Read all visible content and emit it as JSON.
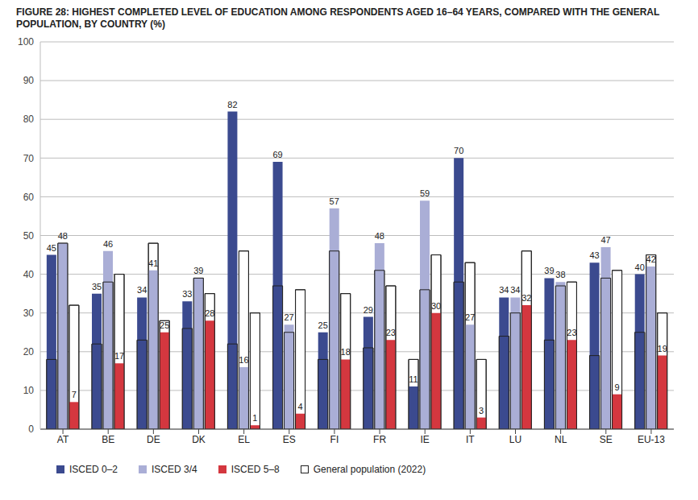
{
  "chart_data": {
    "type": "bar",
    "title": "FIGURE 28: HIGHEST COMPLETED LEVEL OF EDUCATION AMONG RESPONDENTS AGED 16–64 YEARS, COMPARED WITH THE GENERAL POPULATION, BY COUNTRY (%)",
    "categories": [
      "AT",
      "BE",
      "DE",
      "DK",
      "EL",
      "ES",
      "FI",
      "FR",
      "IE",
      "IT",
      "LU",
      "NL",
      "SE",
      "EU-13"
    ],
    "ylim": [
      0,
      100
    ],
    "yticks": [
      0,
      10,
      20,
      30,
      40,
      50,
      60,
      70,
      80,
      90,
      100
    ],
    "grid": true,
    "series": [
      {
        "name": "ISCED 0–2",
        "color": "#3b4a8f",
        "data_labels": true,
        "values": [
          45,
          35,
          34,
          33,
          82,
          69,
          25,
          29,
          11,
          70,
          34,
          39,
          43,
          40
        ]
      },
      {
        "name": "ISCED 3/4",
        "color": "#aaaed6",
        "data_labels": true,
        "values": [
          48,
          46,
          41,
          39,
          16,
          27,
          57,
          48,
          59,
          27,
          34,
          38,
          47,
          42
        ]
      },
      {
        "name": "ISCED 5–8",
        "color": "#d4373f",
        "data_labels": true,
        "values": [
          7,
          17,
          25,
          28,
          1,
          4,
          18,
          23,
          30,
          3,
          32,
          23,
          9,
          19
        ]
      },
      {
        "name": "General population (2022)",
        "color": "#ffffff",
        "type": "outline",
        "data_labels": false,
        "values": [
          [
            18,
            48,
            32
          ],
          [
            22,
            38,
            40
          ],
          [
            23,
            48,
            28
          ],
          [
            26,
            39,
            35
          ],
          [
            22,
            46,
            30
          ],
          [
            37,
            25,
            36
          ],
          [
            18,
            46,
            35
          ],
          [
            21,
            41,
            37
          ],
          [
            18,
            36,
            45
          ],
          [
            38,
            43,
            18
          ],
          [
            24,
            30,
            46
          ],
          [
            23,
            37,
            38
          ],
          [
            19,
            39,
            41
          ],
          [
            25,
            45,
            30
          ]
        ]
      }
    ]
  }
}
